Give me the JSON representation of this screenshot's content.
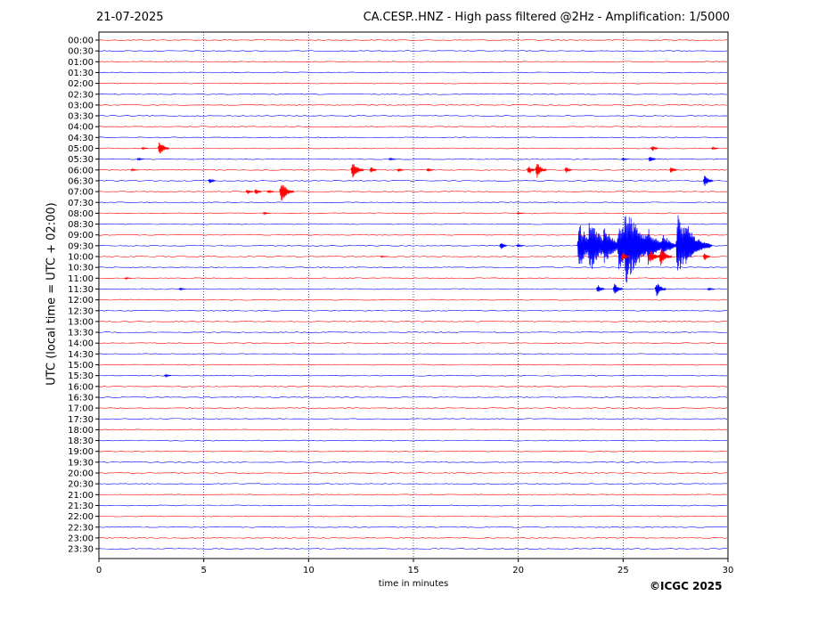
{
  "header": {
    "date": "21-07-2025",
    "title": "CA.CESP..HNZ - High pass filtered @2Hz - Amplification: 1/5000",
    "copyright": "©ICGC 2025"
  },
  "chart_data": {
    "type": "line",
    "title": "CA.CESP..HNZ - High pass filtered @2Hz - Amplification: 1/5000",
    "xlabel": "time in minutes",
    "ylabel": "UTC (local time = UTC + 02:00)",
    "xlim": [
      0,
      30
    ],
    "xticks": [
      0,
      5,
      10,
      15,
      20,
      25,
      30
    ],
    "grid": "vertical dotted at x ticks",
    "trace_colors": [
      "#ff0000",
      "#0000ff"
    ],
    "rows": [
      "00:00",
      "00:30",
      "01:00",
      "01:30",
      "02:00",
      "02:30",
      "03:00",
      "03:30",
      "04:00",
      "04:30",
      "05:00",
      "05:30",
      "06:00",
      "06:30",
      "07:00",
      "07:30",
      "08:00",
      "08:30",
      "09:00",
      "09:30",
      "10:00",
      "10:30",
      "11:00",
      "11:30",
      "12:00",
      "12:30",
      "13:00",
      "13:30",
      "14:00",
      "14:30",
      "15:00",
      "15:30",
      "16:00",
      "16:30",
      "17:00",
      "17:30",
      "18:00",
      "18:30",
      "19:00",
      "19:30",
      "20:00",
      "20:30",
      "21:00",
      "21:30",
      "22:00",
      "22:30",
      "23:00",
      "23:30"
    ],
    "events": [
      {
        "row": "05:00",
        "t": 2.9,
        "amp": 14
      },
      {
        "row": "05:00",
        "t": 2.1,
        "amp": 3
      },
      {
        "row": "05:00",
        "t": 26.4,
        "amp": 7
      },
      {
        "row": "05:00",
        "t": 29.3,
        "amp": 4
      },
      {
        "row": "05:30",
        "t": 1.9,
        "amp": 3
      },
      {
        "row": "05:30",
        "t": 13.9,
        "amp": 3
      },
      {
        "row": "05:30",
        "t": 26.3,
        "amp": 8
      },
      {
        "row": "05:30",
        "t": 25.0,
        "amp": 3
      },
      {
        "row": "06:00",
        "t": 1.6,
        "amp": 3
      },
      {
        "row": "06:00",
        "t": 12.1,
        "amp": 16
      },
      {
        "row": "06:00",
        "t": 13.0,
        "amp": 8
      },
      {
        "row": "06:00",
        "t": 14.3,
        "amp": 4
      },
      {
        "row": "06:00",
        "t": 15.7,
        "amp": 4
      },
      {
        "row": "06:00",
        "t": 20.5,
        "amp": 10
      },
      {
        "row": "06:00",
        "t": 20.9,
        "amp": 14
      },
      {
        "row": "06:00",
        "t": 22.3,
        "amp": 8
      },
      {
        "row": "06:00",
        "t": 27.3,
        "amp": 8
      },
      {
        "row": "06:30",
        "t": 5.3,
        "amp": 7
      },
      {
        "row": "06:30",
        "t": 28.9,
        "amp": 12
      },
      {
        "row": "07:00",
        "t": 7.1,
        "amp": 6
      },
      {
        "row": "07:00",
        "t": 7.5,
        "amp": 7
      },
      {
        "row": "07:00",
        "t": 8.1,
        "amp": 4
      },
      {
        "row": "07:00",
        "t": 8.7,
        "amp": 18
      },
      {
        "row": "08:00",
        "t": 7.9,
        "amp": 3
      },
      {
        "row": "08:00",
        "t": 20.0,
        "amp": 2
      },
      {
        "row": "09:30",
        "t": 19.2,
        "amp": 9
      },
      {
        "row": "09:30",
        "t": 20.0,
        "amp": 4
      },
      {
        "row": "09:30",
        "t": 22.9,
        "amp": 34
      },
      {
        "row": "09:30",
        "t": 23.4,
        "amp": 40
      },
      {
        "row": "09:30",
        "t": 24.1,
        "amp": 30
      },
      {
        "row": "09:30",
        "t": 24.8,
        "amp": 36
      },
      {
        "row": "09:30",
        "t": 25.1,
        "amp": 55
      },
      {
        "row": "09:30",
        "t": 25.6,
        "amp": 30
      },
      {
        "row": "09:30",
        "t": 26.2,
        "amp": 28
      },
      {
        "row": "09:30",
        "t": 26.9,
        "amp": 22
      },
      {
        "row": "09:30",
        "t": 27.6,
        "amp": 42
      },
      {
        "row": "09:30",
        "t": 28.0,
        "amp": 34
      },
      {
        "row": "09:30",
        "t": 29.0,
        "amp": 6
      },
      {
        "row": "10:00",
        "t": 25.0,
        "amp": 10
      },
      {
        "row": "10:00",
        "t": 26.3,
        "amp": 14
      },
      {
        "row": "10:00",
        "t": 26.8,
        "amp": 16
      },
      {
        "row": "10:00",
        "t": 28.9,
        "amp": 9
      },
      {
        "row": "10:00",
        "t": 13.5,
        "amp": 2
      },
      {
        "row": "11:00",
        "t": 1.3,
        "amp": 2
      },
      {
        "row": "11:30",
        "t": 3.9,
        "amp": 3
      },
      {
        "row": "11:30",
        "t": 23.8,
        "amp": 10
      },
      {
        "row": "11:30",
        "t": 24.6,
        "amp": 12
      },
      {
        "row": "11:30",
        "t": 26.6,
        "amp": 14
      },
      {
        "row": "11:30",
        "t": 29.1,
        "amp": 3
      },
      {
        "row": "15:30",
        "t": 3.2,
        "amp": 3
      }
    ]
  }
}
